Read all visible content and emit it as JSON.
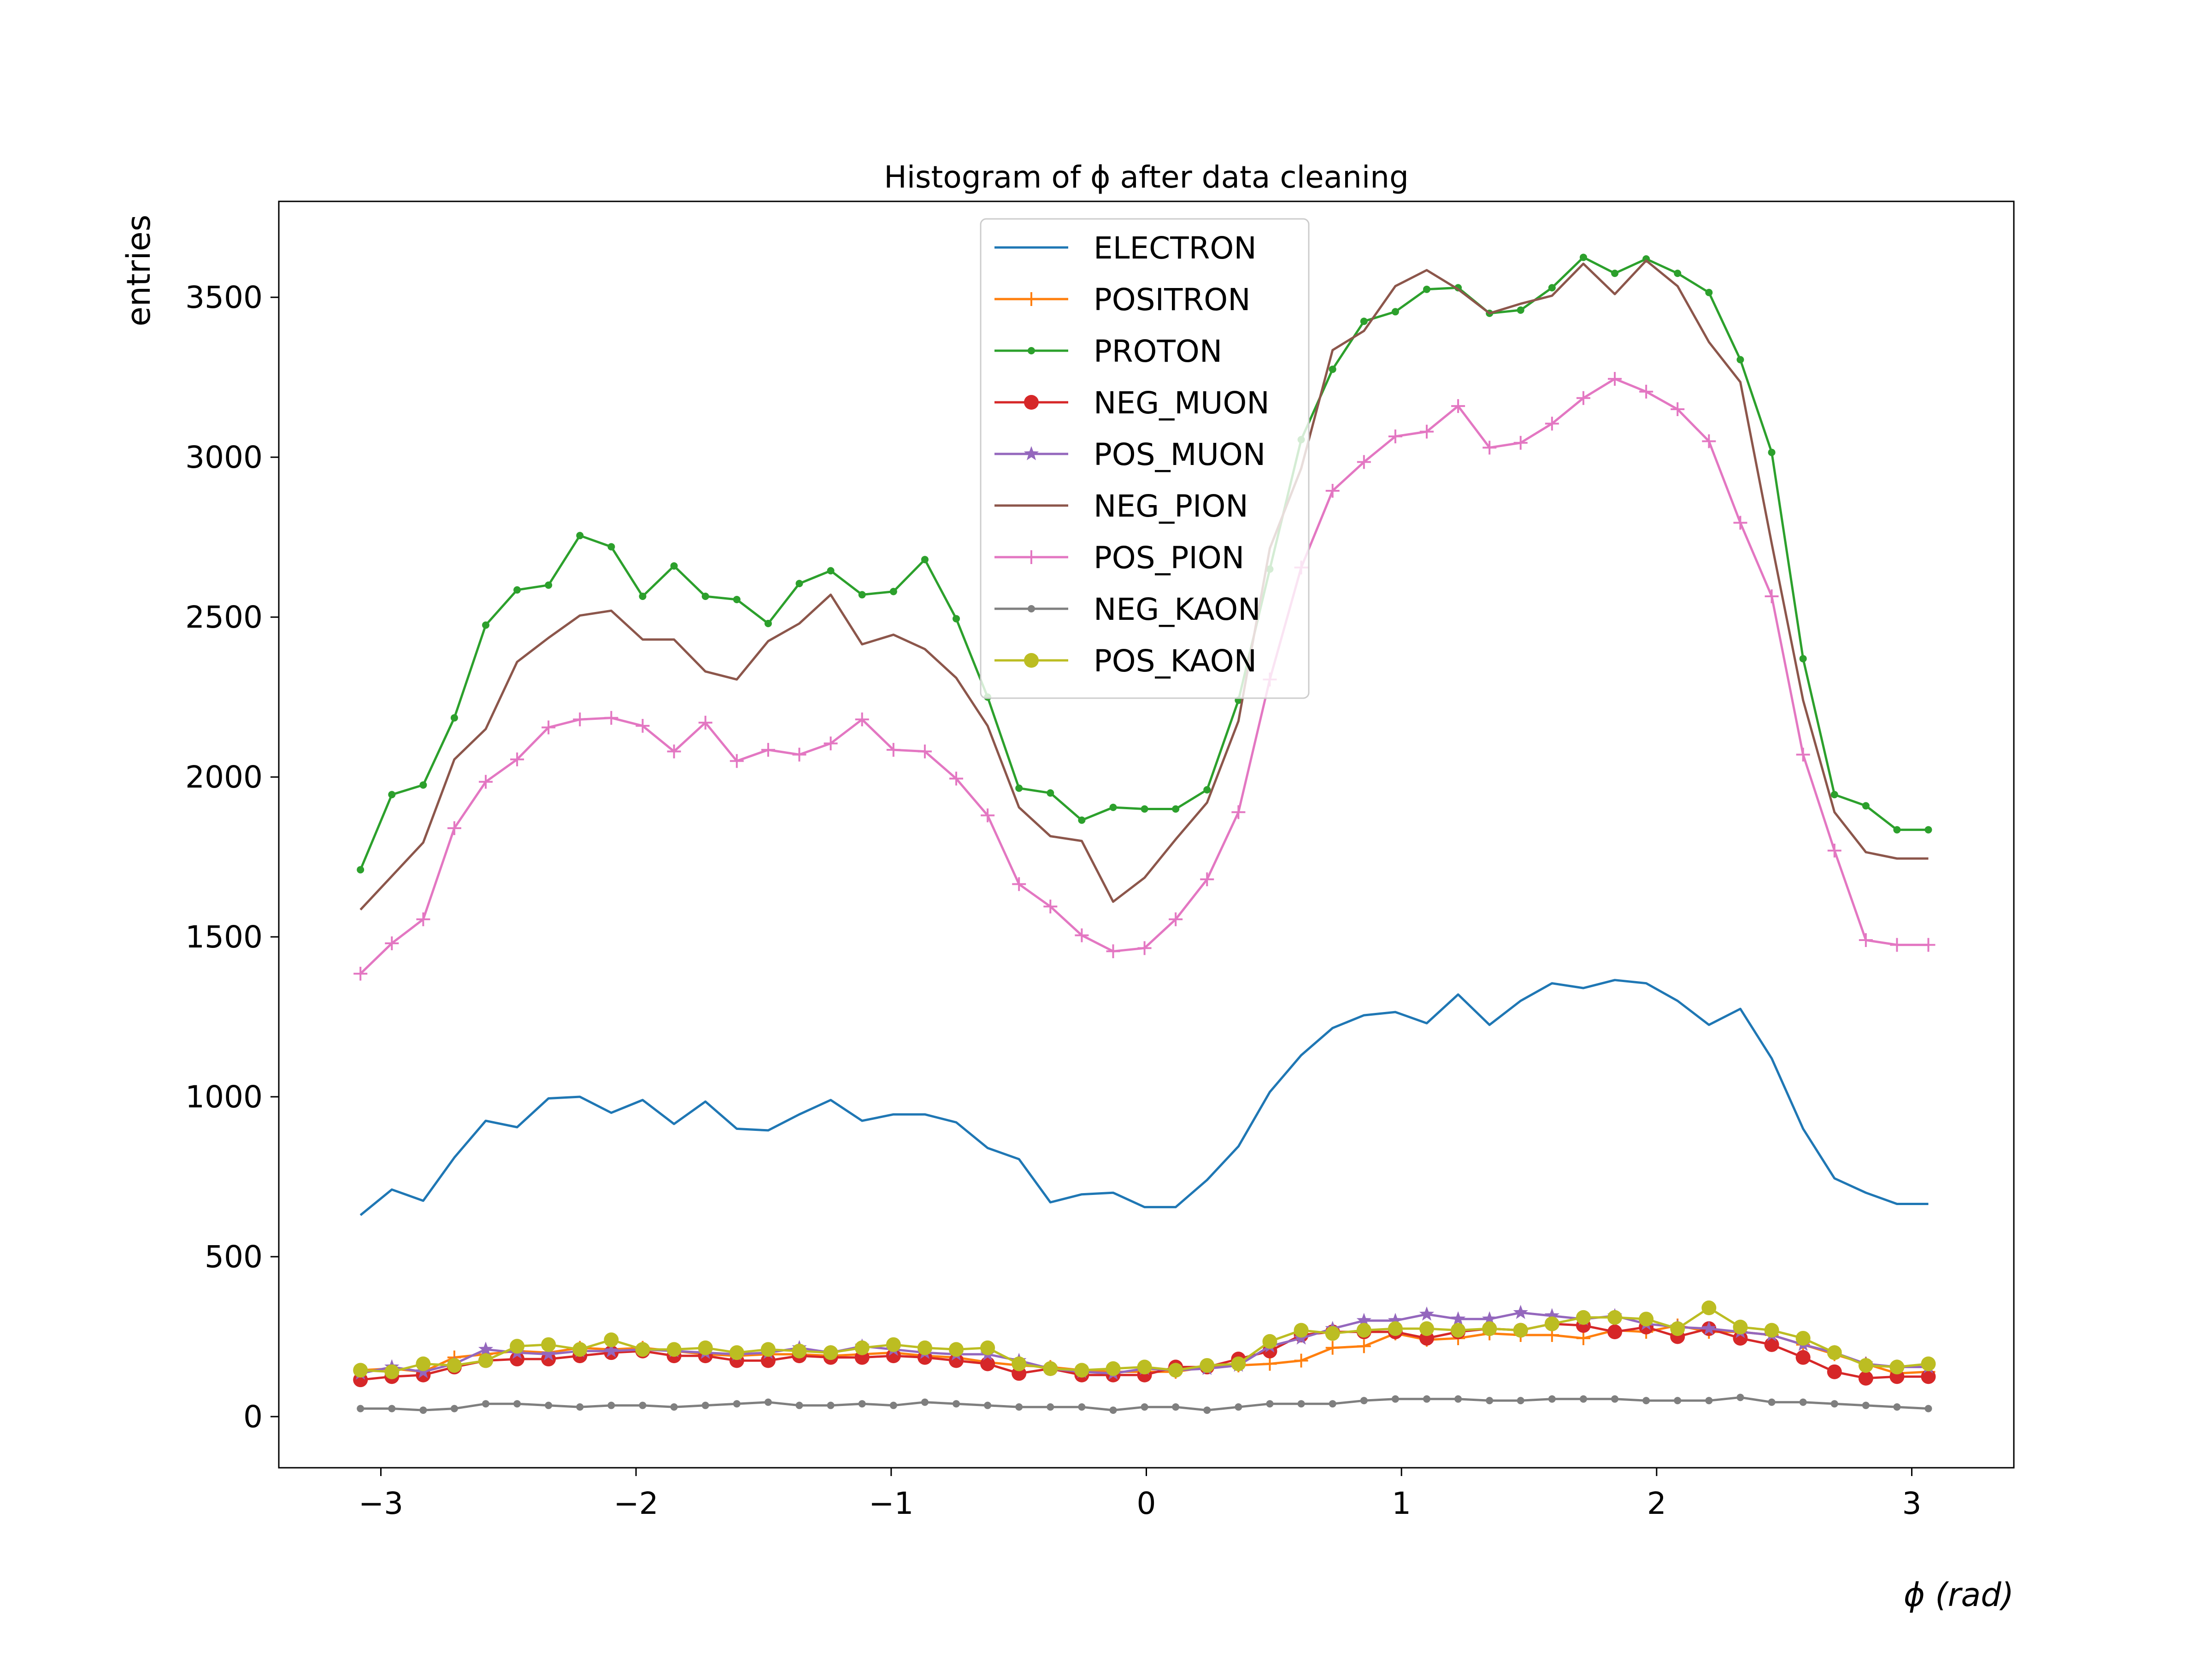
{
  "chart_data": {
    "type": "line",
    "title": "Histogram of ϕ after data cleaning",
    "xlabel": "ϕ (rad)",
    "ylabel": "entries",
    "xlim": [
      -3.4,
      3.4
    ],
    "ylim": [
      -160,
      3800
    ],
    "xticks": [
      -3,
      -2,
      -1,
      0,
      1,
      2,
      3
    ],
    "xtick_labels": [
      "−3",
      "−2",
      "−1",
      "0",
      "1",
      "2",
      "3"
    ],
    "yticks": [
      0,
      500,
      1000,
      1500,
      2000,
      2500,
      3000,
      3500
    ],
    "ytick_labels": [
      "0",
      "500",
      "1000",
      "1500",
      "2000",
      "2500",
      "3000",
      "3500"
    ],
    "grid": false,
    "legend_position": "top-center",
    "x": [
      -3.08,
      -2.957,
      -2.834,
      -2.712,
      -2.589,
      -2.466,
      -2.343,
      -2.22,
      -2.097,
      -1.974,
      -1.851,
      -1.728,
      -1.605,
      -1.482,
      -1.36,
      -1.237,
      -1.114,
      -0.991,
      -0.868,
      -0.745,
      -0.622,
      -0.499,
      -0.376,
      -0.253,
      -0.13,
      -0.007,
      0.115,
      0.238,
      0.361,
      0.484,
      0.607,
      0.73,
      0.853,
      0.976,
      1.099,
      1.222,
      1.345,
      1.467,
      1.59,
      1.713,
      1.836,
      1.959,
      2.082,
      2.205,
      2.328,
      2.451,
      2.574,
      2.697,
      2.82,
      2.942,
      3.065
    ],
    "series": [
      {
        "name": "ELECTRON",
        "color": "#1f77b4",
        "marker": "none",
        "values": [
          630,
          710,
          675,
          810,
          925,
          905,
          995,
          1000,
          950,
          990,
          915,
          985,
          900,
          895,
          945,
          990,
          925,
          945,
          945,
          920,
          840,
          805,
          670,
          695,
          700,
          655,
          655,
          740,
          845,
          1015,
          1130,
          1215,
          1255,
          1265,
          1230,
          1320,
          1225,
          1300,
          1355,
          1340,
          1365,
          1355,
          1300,
          1225,
          1275,
          1120,
          900,
          745,
          700,
          665,
          665
        ]
      },
      {
        "name": "POSITRON",
        "color": "#ff7f0e",
        "marker": "plus",
        "values": [
          145,
          150,
          140,
          185,
          195,
          205,
          200,
          215,
          210,
          215,
          205,
          195,
          190,
          195,
          195,
          190,
          195,
          200,
          190,
          185,
          170,
          160,
          155,
          145,
          140,
          140,
          140,
          155,
          160,
          165,
          175,
          215,
          220,
          260,
          240,
          245,
          260,
          255,
          255,
          245,
          270,
          265,
          285,
          265,
          265,
          255,
          225,
          195,
          165,
          135,
          140
        ]
      },
      {
        "name": "PROTON",
        "color": "#2ca02c",
        "marker": "dot",
        "values": [
          1710,
          1945,
          1975,
          2185,
          2475,
          2585,
          2600,
          2755,
          2720,
          2565,
          2660,
          2565,
          2555,
          2480,
          2605,
          2645,
          2570,
          2580,
          2680,
          2495,
          2250,
          1965,
          1950,
          1865,
          1905,
          1900,
          1900,
          1960,
          2240,
          2650,
          3055,
          3275,
          3425,
          3455,
          3525,
          3530,
          3450,
          3460,
          3530,
          3625,
          3575,
          3620,
          3575,
          3515,
          3305,
          3015,
          2370,
          1945,
          1910,
          1835,
          1835
        ]
      },
      {
        "name": "NEG_MUON",
        "color": "#d62728",
        "marker": "circle",
        "values": [
          115,
          125,
          130,
          155,
          175,
          180,
          180,
          190,
          200,
          205,
          190,
          190,
          175,
          175,
          190,
          185,
          185,
          190,
          185,
          175,
          165,
          135,
          150,
          130,
          130,
          130,
          155,
          155,
          180,
          205,
          255,
          265,
          265,
          265,
          245,
          265,
          275,
          270,
          290,
          285,
          265,
          280,
          250,
          275,
          245,
          225,
          185,
          140,
          120,
          125,
          125
        ]
      },
      {
        "name": "POS_MUON",
        "color": "#9467bd",
        "marker": "star",
        "values": [
          135,
          155,
          140,
          165,
          210,
          200,
          195,
          205,
          205,
          210,
          205,
          200,
          195,
          200,
          215,
          200,
          220,
          210,
          200,
          195,
          195,
          175,
          150,
          140,
          135,
          150,
          145,
          150,
          160,
          220,
          245,
          275,
          300,
          300,
          320,
          305,
          305,
          325,
          315,
          305,
          315,
          290,
          280,
          275,
          265,
          255,
          225,
          200,
          165,
          155,
          155
        ]
      },
      {
        "name": "NEG_PION",
        "color": "#8c564b",
        "marker": "none",
        "values": [
          1585,
          1690,
          1795,
          2055,
          2150,
          2360,
          2435,
          2505,
          2520,
          2430,
          2430,
          2330,
          2305,
          2425,
          2480,
          2570,
          2415,
          2445,
          2400,
          2310,
          2160,
          1905,
          1815,
          1800,
          1610,
          1685,
          1805,
          1920,
          2175,
          2715,
          2965,
          3335,
          3395,
          3535,
          3585,
          3525,
          3450,
          3480,
          3505,
          3605,
          3510,
          3615,
          3535,
          3360,
          3235,
          2730,
          2240,
          1890,
          1765,
          1745,
          1745
        ]
      },
      {
        "name": "POS_PION",
        "color": "#e377c2",
        "marker": "plus",
        "values": [
          1385,
          1480,
          1555,
          1840,
          1985,
          2055,
          2155,
          2180,
          2185,
          2160,
          2080,
          2170,
          2050,
          2085,
          2070,
          2105,
          2180,
          2085,
          2080,
          1995,
          1880,
          1665,
          1595,
          1505,
          1455,
          1465,
          1555,
          1680,
          1890,
          2305,
          2655,
          2895,
          2985,
          3065,
          3080,
          3160,
          3030,
          3045,
          3105,
          3185,
          3245,
          3205,
          3150,
          3050,
          2795,
          2565,
          2070,
          1770,
          1490,
          1475,
          1475
        ]
      },
      {
        "name": "NEG_KAON",
        "color": "#7f7f7f",
        "marker": "dot",
        "values": [
          25,
          25,
          20,
          25,
          40,
          40,
          35,
          30,
          35,
          35,
          30,
          35,
          40,
          45,
          35,
          35,
          40,
          35,
          45,
          40,
          35,
          30,
          30,
          30,
          20,
          30,
          30,
          20,
          30,
          40,
          40,
          40,
          50,
          55,
          55,
          55,
          50,
          50,
          55,
          55,
          55,
          50,
          50,
          50,
          60,
          45,
          45,
          40,
          35,
          30,
          25
        ]
      },
      {
        "name": "POS_KAON",
        "color": "#bcbd22",
        "marker": "circle",
        "values": [
          145,
          140,
          165,
          160,
          175,
          220,
          225,
          210,
          240,
          210,
          210,
          215,
          200,
          210,
          205,
          200,
          215,
          225,
          215,
          210,
          215,
          165,
          150,
          145,
          150,
          155,
          145,
          160,
          165,
          235,
          270,
          260,
          270,
          275,
          275,
          270,
          275,
          270,
          290,
          310,
          310,
          305,
          275,
          340,
          280,
          270,
          245,
          200,
          160,
          155,
          165
        ]
      }
    ]
  }
}
